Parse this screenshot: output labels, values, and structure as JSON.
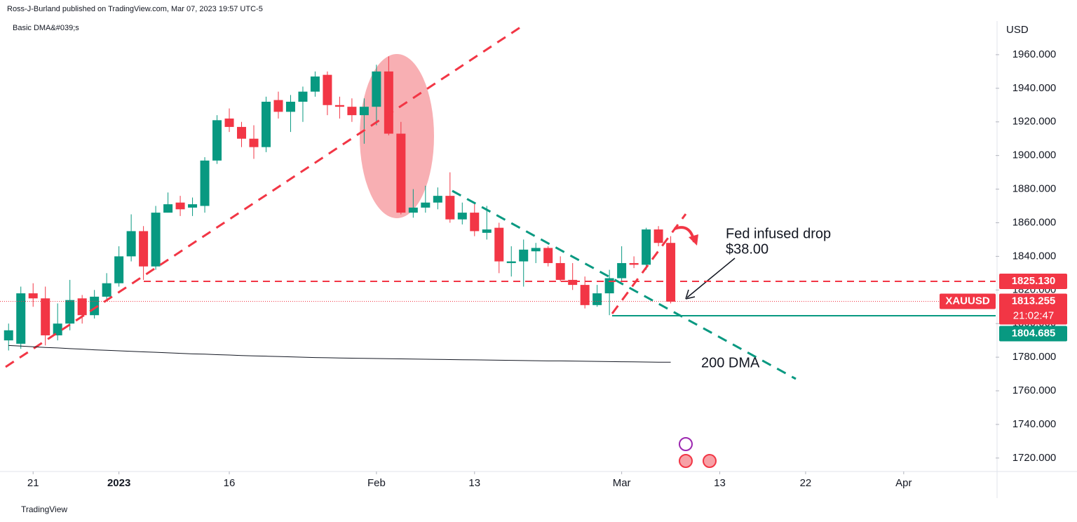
{
  "header": {
    "byline": "Ross-J-Burland published on TradingView.com, Mar 07, 2023 19:57 UTC-5",
    "indicator": "Basic DMA&#039;s",
    "footer": "TradingView"
  },
  "chart_data": {
    "type": "candlestick",
    "currency": "USD",
    "up_color": "#089981",
    "down_color": "#f23645",
    "open": [
      1790,
      1788,
      1818,
      1815,
      1793,
      1800,
      1815,
      1805,
      1816,
      1824,
      1840,
      1855,
      1834,
      1866,
      1872,
      1869,
      1870,
      1897,
      1922,
      1917,
      1910,
      1905,
      1933,
      1926,
      1932,
      1938,
      1948,
      1930,
      1929,
      1924,
      1929,
      1950,
      1913,
      1866,
      1869,
      1872,
      1876,
      1862,
      1866,
      1854,
      1857,
      1836,
      1837,
      1843,
      1845,
      1836,
      1826,
      1823,
      1811,
      1818,
      1827,
      1836,
      1835,
      1856,
      1848
    ],
    "high": [
      1800,
      1822,
      1824,
      1822,
      1812,
      1826,
      1817,
      1820,
      1830,
      1846,
      1865,
      1858,
      1870,
      1878,
      1876,
      1875,
      1899,
      1924,
      1928,
      1920,
      1918,
      1935,
      1938,
      1936,
      1941,
      1950,
      1950,
      1935,
      1934,
      1934,
      1954,
      1959,
      1920,
      1880,
      1882,
      1881,
      1890,
      1872,
      1871,
      1870,
      1860,
      1846,
      1850,
      1848,
      1846,
      1840,
      1836,
      1828,
      1823,
      1832,
      1846,
      1840,
      1857,
      1858,
      1852
    ],
    "low": [
      1784,
      1785,
      1810,
      1787,
      1790,
      1796,
      1800,
      1803,
      1814,
      1822,
      1837,
      1826,
      1832,
      1866,
      1864,
      1864,
      1866,
      1895,
      1914,
      1905,
      1898,
      1902,
      1922,
      1914,
      1920,
      1935,
      1924,
      1922,
      1920,
      1907,
      1918,
      1912,
      1865,
      1863,
      1866,
      1868,
      1860,
      1859,
      1852,
      1850,
      1830,
      1828,
      1822,
      1836,
      1834,
      1825,
      1820,
      1809,
      1810,
      1805,
      1825,
      1833,
      1832,
      1846,
      1812
    ],
    "close": [
      1796,
      1818,
      1815,
      1793,
      1800,
      1814,
      1805,
      1816,
      1824,
      1840,
      1855,
      1834,
      1866,
      1871,
      1868,
      1871,
      1897,
      1921,
      1917,
      1910,
      1905,
      1932,
      1926,
      1932,
      1938,
      1947,
      1930,
      1929,
      1924,
      1929,
      1950,
      1913,
      1866,
      1869,
      1872,
      1876,
      1862,
      1866,
      1855,
      1856,
      1837,
      1837,
      1844,
      1845,
      1836,
      1826,
      1823,
      1811,
      1818,
      1827,
      1836,
      1835,
      1856,
      1848,
      1813
    ],
    "dma": {
      "name": "200 DMA",
      "color": "#131722",
      "values": [
        1787,
        1786.6,
        1786.2,
        1785.8,
        1785.5,
        1785.1,
        1784.8,
        1784.4,
        1784.1,
        1783.8,
        1783.5,
        1783.2,
        1782.9,
        1782.6,
        1782.3,
        1782,
        1781.8,
        1781.5,
        1781.3,
        1781,
        1780.8,
        1780.6,
        1780.4,
        1780.2,
        1780,
        1779.8,
        1779.7,
        1779.5,
        1779.4,
        1779.3,
        1779.2,
        1779.1,
        1779,
        1778.9,
        1778.8,
        1778.7,
        1778.6,
        1778.5,
        1778.4,
        1778.3,
        1778.2,
        1778.1,
        1778,
        1777.9,
        1777.8,
        1777.8,
        1777.7,
        1777.6,
        1777.5,
        1777.4,
        1777.3,
        1777.2,
        1777.1,
        1777,
        1777
      ]
    },
    "xlim": [
      -0.7,
      80.5
    ],
    "ylim": [
      1712,
      1980
    ],
    "xticks": [
      {
        "value": 2,
        "label": "21"
      },
      {
        "value": 9,
        "label": "2023"
      },
      {
        "value": 18,
        "label": "16"
      },
      {
        "value": 30,
        "label": "Feb"
      },
      {
        "value": 38,
        "label": "13"
      },
      {
        "value": 50,
        "label": "Mar"
      },
      {
        "value": 58,
        "label": "13"
      },
      {
        "value": 65,
        "label": "22"
      },
      {
        "value": 73,
        "label": "Apr"
      }
    ],
    "yticks": [
      {
        "value": 1720,
        "label": "1720.000"
      },
      {
        "value": 1740,
        "label": "1740.000"
      },
      {
        "value": 1760,
        "label": "1760.000"
      },
      {
        "value": 1780,
        "label": "1780.000"
      },
      {
        "value": 1800,
        "label": "1800.000"
      },
      {
        "value": 1820,
        "label": "1820.000"
      },
      {
        "value": 1840,
        "label": "1840.000"
      },
      {
        "value": 1860,
        "label": "1860.000"
      },
      {
        "value": 1880,
        "label": "1880.000"
      },
      {
        "value": 1900,
        "label": "1900.000"
      },
      {
        "value": 1920,
        "label": "1920.000"
      },
      {
        "value": 1940,
        "label": "1940.000"
      },
      {
        "value": 1960,
        "label": "1960.000"
      }
    ],
    "levels": [
      {
        "value": 1825.13,
        "label": "1825.130",
        "color": "#f23645"
      },
      {
        "value": 1804.685,
        "label": "1804.685",
        "color": "#089981"
      }
    ],
    "last": {
      "symbol": "XAUUSD",
      "value": 1813.255,
      "label": "1813.255",
      "countdown": "21:02:47"
    },
    "annotations": [
      "Fed infused drop",
      "$38.00"
    ]
  }
}
